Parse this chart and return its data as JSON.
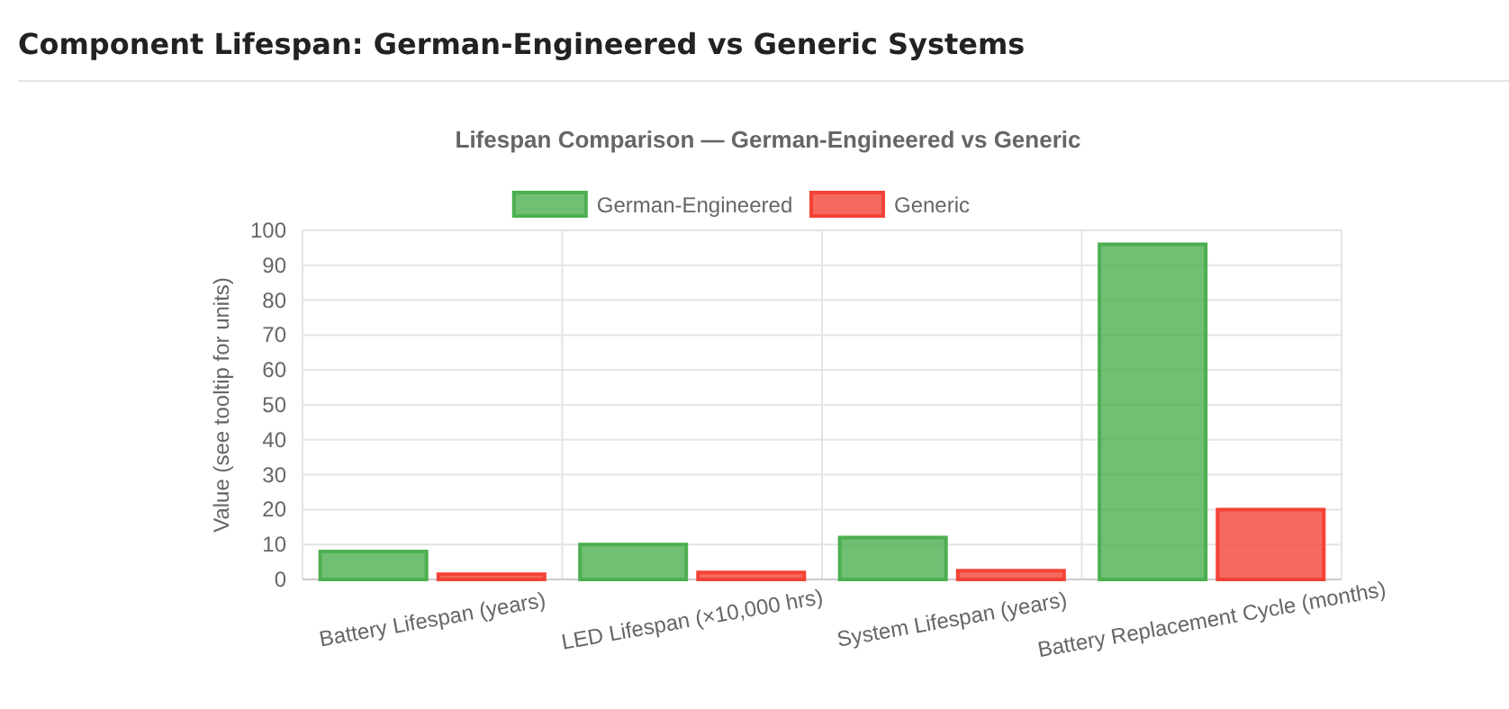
{
  "chart_data": {
    "type": "bar",
    "title": "Component Lifespan: German-Engineered vs Generic Systems",
    "subtitle": "Lifespan Comparison — German-Engineered vs Generic",
    "ylabel": "Value (see tooltip for units)",
    "categories": [
      "Battery Lifespan (years)",
      "LED Lifespan (×10,000 hrs)",
      "System Lifespan (years)",
      "Battery Replacement Cycle (months)"
    ],
    "series": [
      {
        "name": "German-Engineered",
        "color": "#4caf50",
        "values": [
          8,
          10,
          12,
          96
        ]
      },
      {
        "name": "Generic",
        "color": "#f44336",
        "values": [
          1.5,
          2,
          2.5,
          20
        ]
      }
    ],
    "ylim": [
      0,
      100
    ],
    "yticks": [
      0,
      10,
      20,
      30,
      40,
      50,
      60,
      70,
      80,
      90,
      100
    ],
    "grid": true,
    "legend": "top"
  }
}
